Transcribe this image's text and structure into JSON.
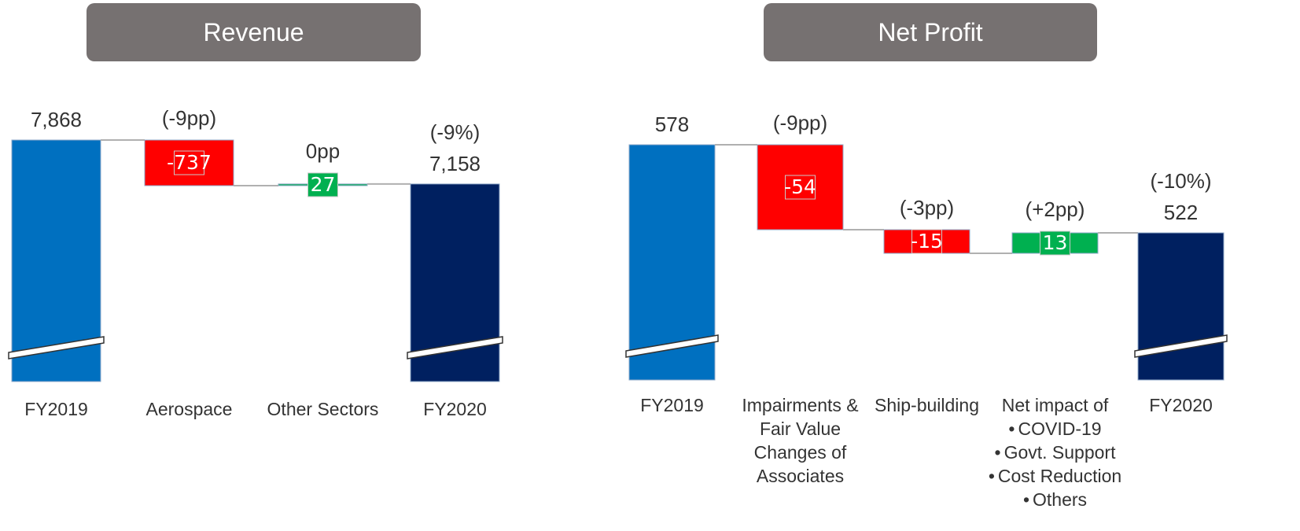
{
  "chart_data": [
    {
      "type": "waterfall",
      "title": "Revenue",
      "categories": [
        "FY2019",
        "Aerospace",
        "Other Sectors",
        "FY2020"
      ],
      "values": [
        7868,
        -737,
        27,
        7158
      ],
      "value_labels": [
        "7,868",
        "-737",
        "27",
        "7,158"
      ],
      "annotations": [
        null,
        "(-9pp)",
        "0pp",
        "(-9%)"
      ],
      "category_details": [
        null,
        null,
        null,
        null
      ],
      "colors": [
        "#0070c0",
        "#ff0000",
        "#00b050",
        "#002060"
      ]
    },
    {
      "type": "waterfall",
      "title": "Net Profit",
      "categories": [
        "FY2019",
        "Impairments & Fair Value Changes of Associates",
        "Ship-building",
        "Net impact of",
        "FY2020"
      ],
      "values": [
        578,
        -54,
        -15,
        13,
        522
      ],
      "annotations": [
        null,
        "(-9pp)",
        "(-3pp)",
        "(+2pp)",
        "(-10%)"
      ],
      "category_details": [
        null,
        null,
        null,
        [
          "COVID-19",
          "Govt. Support",
          "Cost Reduction",
          "Others"
        ],
        null
      ],
      "colors": [
        "#0070c0",
        "#ff0000",
        "#ff0000",
        "#00b050",
        "#002060"
      ]
    }
  ]
}
